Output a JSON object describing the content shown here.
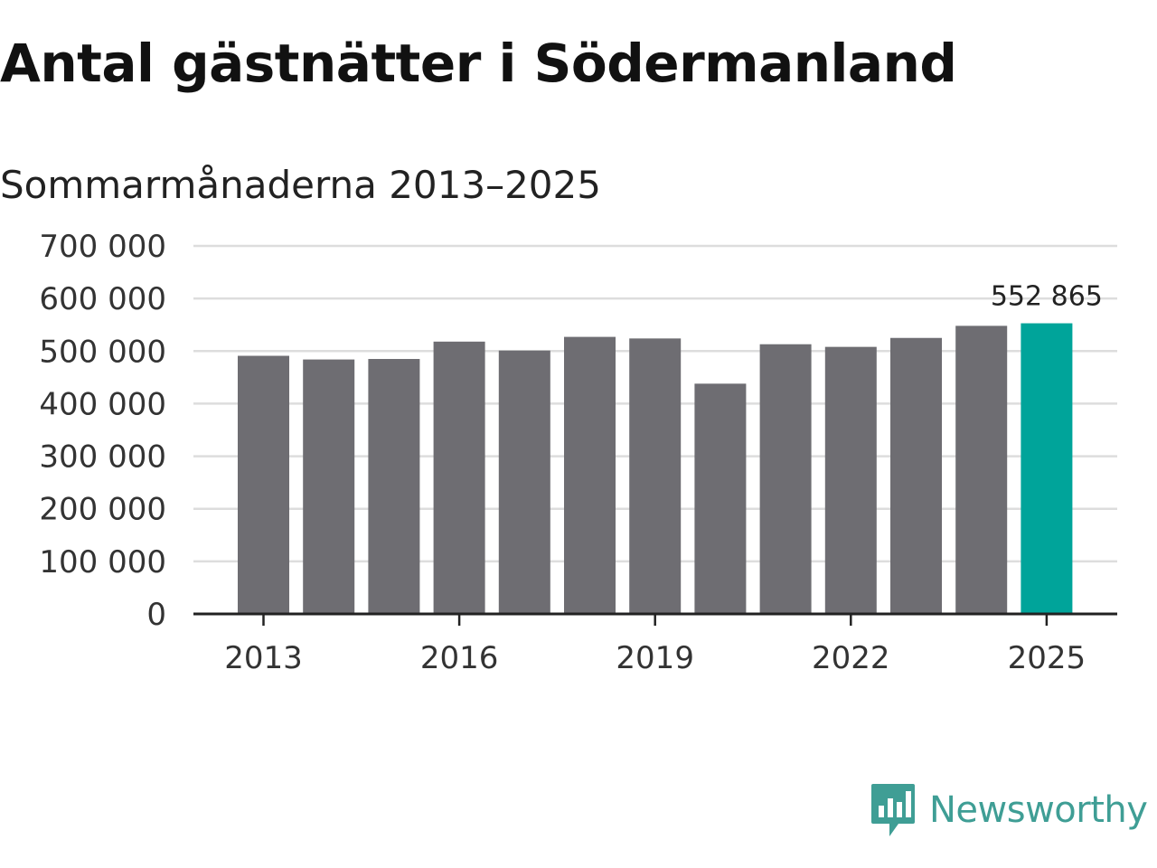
{
  "chart_data": {
    "type": "bar",
    "title": "Antal gästnätter i Södermanland",
    "subtitle": "Sommarmånaderna 2013–2025",
    "categories": [
      "2013",
      "2014",
      "2015",
      "2016",
      "2017",
      "2018",
      "2019",
      "2020",
      "2021",
      "2022",
      "2023",
      "2024",
      "2025"
    ],
    "values": [
      491000,
      484000,
      485000,
      518000,
      501000,
      527000,
      524000,
      438000,
      513000,
      508000,
      525000,
      548000,
      552865
    ],
    "ylim": [
      0,
      700000
    ],
    "yticks": [
      0,
      100000,
      200000,
      300000,
      400000,
      500000,
      600000,
      700000
    ],
    "ytick_labels": [
      "0",
      "100 000",
      "200 000",
      "300 000",
      "400 000",
      "500 000",
      "600 000",
      "700 000"
    ],
    "xtick_labels": [
      "2013",
      "2016",
      "2019",
      "2022",
      "2025"
    ],
    "highlight_index": 12,
    "highlight_label": "552 865",
    "colors": {
      "bar": "#6e6d72",
      "highlight": "#00a49a",
      "grid": "#dddddd",
      "axis": "#222222"
    },
    "grid": true
  },
  "branding": {
    "name": "Newsworthy",
    "icon": "newsworthy-logo-icon",
    "color": "#3f9e95"
  }
}
